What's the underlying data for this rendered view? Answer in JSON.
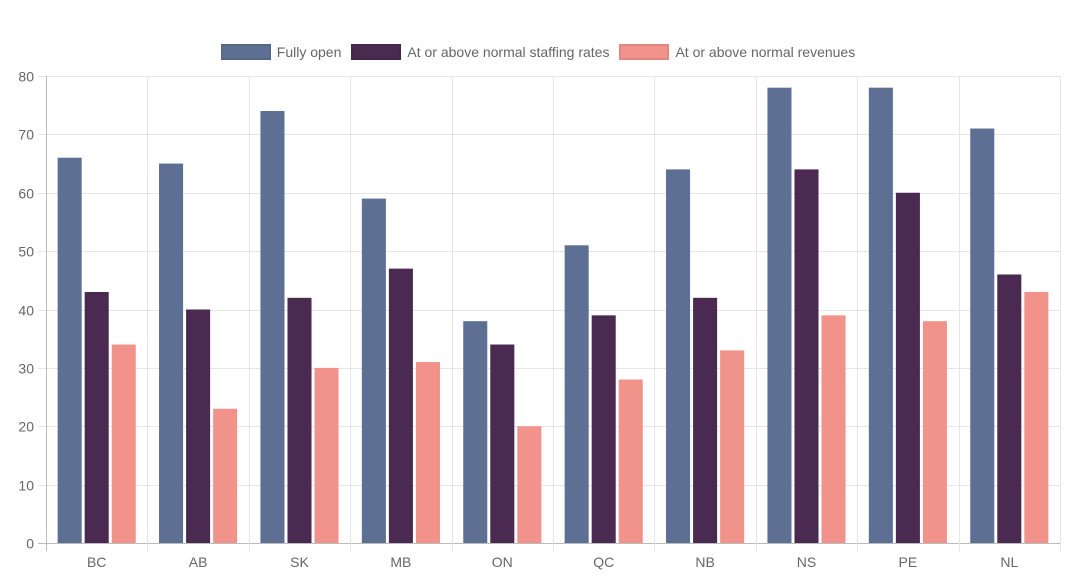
{
  "chart_data": {
    "type": "bar",
    "categories": [
      "BC",
      "AB",
      "SK",
      "MB",
      "ON",
      "QC",
      "NB",
      "NS",
      "PE",
      "NL"
    ],
    "series": [
      {
        "name": "Fully open",
        "color": "#5d6f92",
        "values": [
          66,
          65,
          74,
          59,
          38,
          51,
          64,
          78,
          78,
          71
        ]
      },
      {
        "name": "At or above normal staffing rates",
        "color": "#4b2a52",
        "values": [
          43,
          40,
          42,
          47,
          34,
          39,
          42,
          64,
          60,
          46
        ]
      },
      {
        "name": "At or above normal revenues",
        "color": "#f2938b",
        "values": [
          34,
          23,
          30,
          31,
          20,
          28,
          33,
          39,
          38,
          43
        ]
      }
    ],
    "ylim": [
      0,
      80
    ],
    "yticks": [
      "0",
      "10",
      "20",
      "30",
      "40",
      "50",
      "60",
      "70",
      "80"
    ],
    "grid": true,
    "legend_position": "top-center"
  }
}
